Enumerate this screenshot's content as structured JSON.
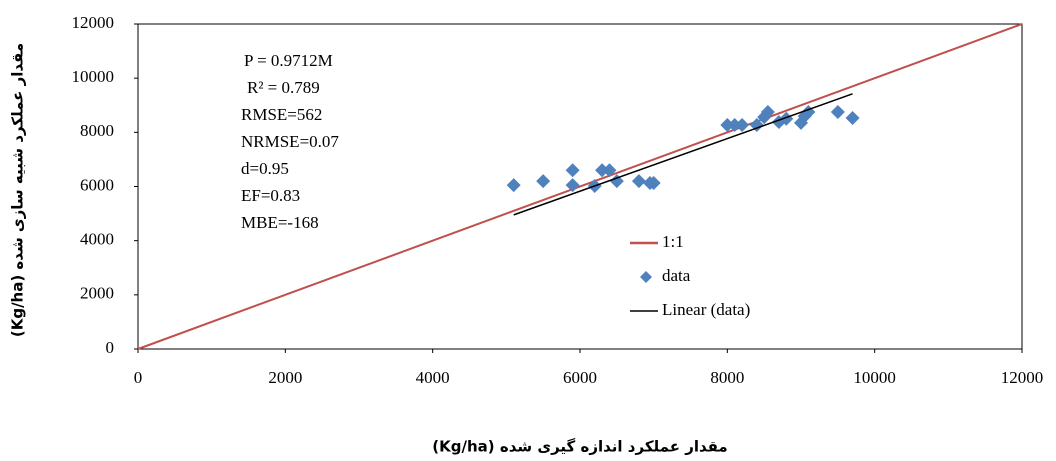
{
  "chart_data": {
    "type": "scatter",
    "x_label": "مقدار عملکرد اندازه گیری شده (Kg/ha)",
    "y_label": "مقدار عملکرد شبیه سازی شده (Kg/ha)",
    "annotations": [
      "P = 0.9712M",
      "R² = 0.789",
      "RMSE=562",
      "NRMSE=0.07",
      "d=0.95",
      "EF=0.83",
      "MBE=-168"
    ],
    "xlim": [
      0,
      12000
    ],
    "xticks": [
      0,
      2000,
      4000,
      6000,
      8000,
      10000,
      12000
    ],
    "ylim": [
      0,
      12000
    ],
    "yticks": [
      0,
      2000,
      4000,
      6000,
      8000,
      10000,
      12000
    ],
    "series": [
      {
        "name": "1:1",
        "color": "#c0504d",
        "mode": "line",
        "x": [
          0,
          12000
        ],
        "values": [
          0,
          12000
        ]
      },
      {
        "name": "data",
        "color": "#4f81bd",
        "mode": "markers",
        "x": [
          5100,
          5500,
          5900,
          5900,
          6200,
          6300,
          6400,
          6500,
          6800,
          6950,
          7000,
          8000,
          8100,
          8200,
          8400,
          8500,
          8550,
          8700,
          8800,
          9000,
          9050,
          9100,
          9500,
          9700
        ],
        "values": [
          6050,
          6200,
          6600,
          6050,
          6020,
          6600,
          6600,
          6200,
          6200,
          6130,
          6130,
          8270,
          8270,
          8270,
          8270,
          8560,
          8750,
          8380,
          8500,
          8350,
          8600,
          8750,
          8750,
          8530
        ]
      },
      {
        "name": "Linear (data)",
        "color": "#000000",
        "mode": "line",
        "x": [
          5100,
          9700
        ],
        "values": [
          4953,
          9421
        ]
      }
    ]
  }
}
